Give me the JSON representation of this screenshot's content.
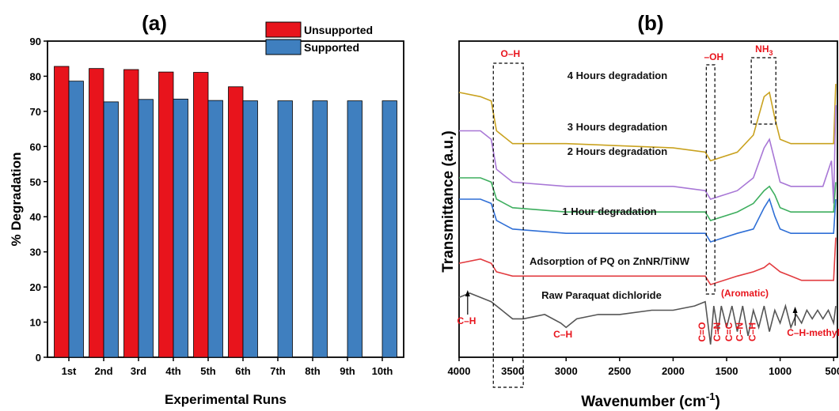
{
  "chart_data": [
    {
      "type": "bar",
      "panel": "(a)",
      "title": "(a)",
      "xlabel": "Experimental Runs",
      "ylabel": "% Degradation",
      "ylim": [
        0,
        90
      ],
      "yticks": [
        "0",
        "10",
        "20",
        "30",
        "40",
        "50",
        "60",
        "70",
        "80",
        "90"
      ],
      "categories": [
        "1st",
        "2nd",
        "3rd",
        "4th",
        "5th",
        "6th",
        "7th",
        "8th",
        "9th",
        "10th"
      ],
      "legend_position": "top-right",
      "series": [
        {
          "name": "Unsupported",
          "color": "#e8141c",
          "values": [
            82.8,
            82.2,
            81.9,
            81.2,
            81.1,
            77.0,
            null,
            null,
            null,
            null
          ]
        },
        {
          "name": "Supported",
          "color": "#3f7fbf",
          "values": [
            78.6,
            72.7,
            73.4,
            73.5,
            73.1,
            73.0,
            73.0,
            73.0,
            73.0,
            73.0
          ]
        }
      ]
    },
    {
      "type": "line",
      "panel": "(b)",
      "title": "(b)",
      "xlabel": "Wavenumber (cm",
      "xlabel_sup": "-1",
      "xlabel_close": ")",
      "ylabel": "Transmittance (a.u.)",
      "xlim": [
        4000,
        450
      ],
      "xticks": [
        "4000",
        "3500",
        "3000",
        "2500",
        "2000",
        "1500",
        "1000",
        "500"
      ],
      "series": [
        {
          "name": "4 Hours degradation",
          "color": "#c9a21f",
          "points": [
            [
              4000,
              58
            ],
            [
              3800,
              57
            ],
            [
              3700,
              56
            ],
            [
              3650,
              49
            ],
            [
              3500,
              46
            ],
            [
              3000,
              46
            ],
            [
              2000,
              45
            ],
            [
              1700,
              44
            ],
            [
              1650,
              42
            ],
            [
              1400,
              44
            ],
            [
              1250,
              48
            ],
            [
              1150,
              57
            ],
            [
              1100,
              58
            ],
            [
              1050,
              52
            ],
            [
              1000,
              47
            ],
            [
              900,
              46
            ],
            [
              600,
              46
            ],
            [
              500,
              46
            ],
            [
              480,
              60
            ]
          ]
        },
        {
          "name": "3 Hours degradation",
          "color": "#a877d6",
          "points": [
            [
              4000,
              49
            ],
            [
              3800,
              49
            ],
            [
              3700,
              47
            ],
            [
              3650,
              40
            ],
            [
              3500,
              37
            ],
            [
              3000,
              36
            ],
            [
              2000,
              36
            ],
            [
              1700,
              35
            ],
            [
              1650,
              33
            ],
            [
              1400,
              35
            ],
            [
              1250,
              38
            ],
            [
              1150,
              45
            ],
            [
              1100,
              47
            ],
            [
              1050,
              42
            ],
            [
              1000,
              37
            ],
            [
              900,
              36
            ],
            [
              600,
              36
            ],
            [
              520,
              42
            ],
            [
              500,
              32
            ],
            [
              480,
              55
            ]
          ]
        },
        {
          "name": "2 Hours degradation",
          "color": "#3dae5e",
          "points": [
            [
              4000,
              38
            ],
            [
              3800,
              38
            ],
            [
              3700,
              37
            ],
            [
              3650,
              33
            ],
            [
              3500,
              31
            ],
            [
              3000,
              30
            ],
            [
              2000,
              30
            ],
            [
              1700,
              30
            ],
            [
              1650,
              28
            ],
            [
              1400,
              30
            ],
            [
              1250,
              32
            ],
            [
              1150,
              35
            ],
            [
              1100,
              36
            ],
            [
              1050,
              34
            ],
            [
              1000,
              31
            ],
            [
              900,
              30
            ],
            [
              600,
              30
            ],
            [
              500,
              30
            ],
            [
              480,
              37
            ]
          ]
        },
        {
          "name": "1 Hour degradation",
          "color": "#2f6fd6",
          "points": [
            [
              4000,
              33
            ],
            [
              3800,
              33
            ],
            [
              3700,
              32
            ],
            [
              3650,
              28
            ],
            [
              3500,
              26
            ],
            [
              3000,
              25
            ],
            [
              2000,
              25
            ],
            [
              1700,
              25
            ],
            [
              1650,
              23
            ],
            [
              1400,
              25
            ],
            [
              1250,
              26
            ],
            [
              1150,
              31
            ],
            [
              1100,
              33
            ],
            [
              1050,
              29
            ],
            [
              1000,
              26
            ],
            [
              900,
              25
            ],
            [
              600,
              25
            ],
            [
              500,
              25
            ],
            [
              480,
              33
            ]
          ]
        },
        {
          "name": "Adsorption of PQ on ZnNR/TiNW",
          "color": "#e23b3f",
          "points": [
            [
              4000,
              18
            ],
            [
              3800,
              19
            ],
            [
              3700,
              18
            ],
            [
              3650,
              16
            ],
            [
              3500,
              15
            ],
            [
              3000,
              15
            ],
            [
              2000,
              15
            ],
            [
              1700,
              15
            ],
            [
              1650,
              13
            ],
            [
              1400,
              15
            ],
            [
              1250,
              16
            ],
            [
              1150,
              17
            ],
            [
              1100,
              18
            ],
            [
              1050,
              17
            ],
            [
              1000,
              16
            ],
            [
              900,
              15
            ],
            [
              800,
              14
            ],
            [
              600,
              14
            ],
            [
              500,
              14
            ],
            [
              480,
              24
            ]
          ]
        },
        {
          "name": "Raw Paraquat dichloride",
          "color": "#555555",
          "points": [
            [
              4000,
              10
            ],
            [
              3900,
              11
            ],
            [
              3800,
              10
            ],
            [
              3700,
              9
            ],
            [
              3600,
              7
            ],
            [
              3500,
              5
            ],
            [
              3400,
              5
            ],
            [
              3200,
              6
            ],
            [
              3050,
              4
            ],
            [
              3000,
              3
            ],
            [
              2900,
              5
            ],
            [
              2700,
              6
            ],
            [
              2500,
              6
            ],
            [
              2200,
              7
            ],
            [
              2000,
              7
            ],
            [
              1800,
              8
            ],
            [
              1700,
              9
            ],
            [
              1650,
              -1
            ],
            [
              1620,
              8
            ],
            [
              1580,
              2
            ],
            [
              1550,
              8
            ],
            [
              1500,
              3
            ],
            [
              1450,
              8
            ],
            [
              1400,
              2
            ],
            [
              1350,
              8
            ],
            [
              1300,
              1
            ],
            [
              1250,
              7
            ],
            [
              1200,
              3
            ],
            [
              1150,
              8
            ],
            [
              1100,
              2
            ],
            [
              1050,
              7
            ],
            [
              1000,
              4
            ],
            [
              950,
              8
            ],
            [
              900,
              3
            ],
            [
              850,
              6
            ],
            [
              800,
              4
            ],
            [
              750,
              7
            ],
            [
              700,
              5
            ],
            [
              650,
              7
            ],
            [
              600,
              5
            ],
            [
              550,
              7
            ],
            [
              500,
              4
            ],
            [
              480,
              8
            ]
          ]
        }
      ],
      "annotations": [
        "O–H",
        "–OH",
        "NH",
        "3",
        "(Aromatic)",
        "C–H",
        "C–H",
        "C=O",
        "C=N",
        "C=C",
        "C–N",
        "C–H",
        "C–H-methyl"
      ]
    }
  ]
}
